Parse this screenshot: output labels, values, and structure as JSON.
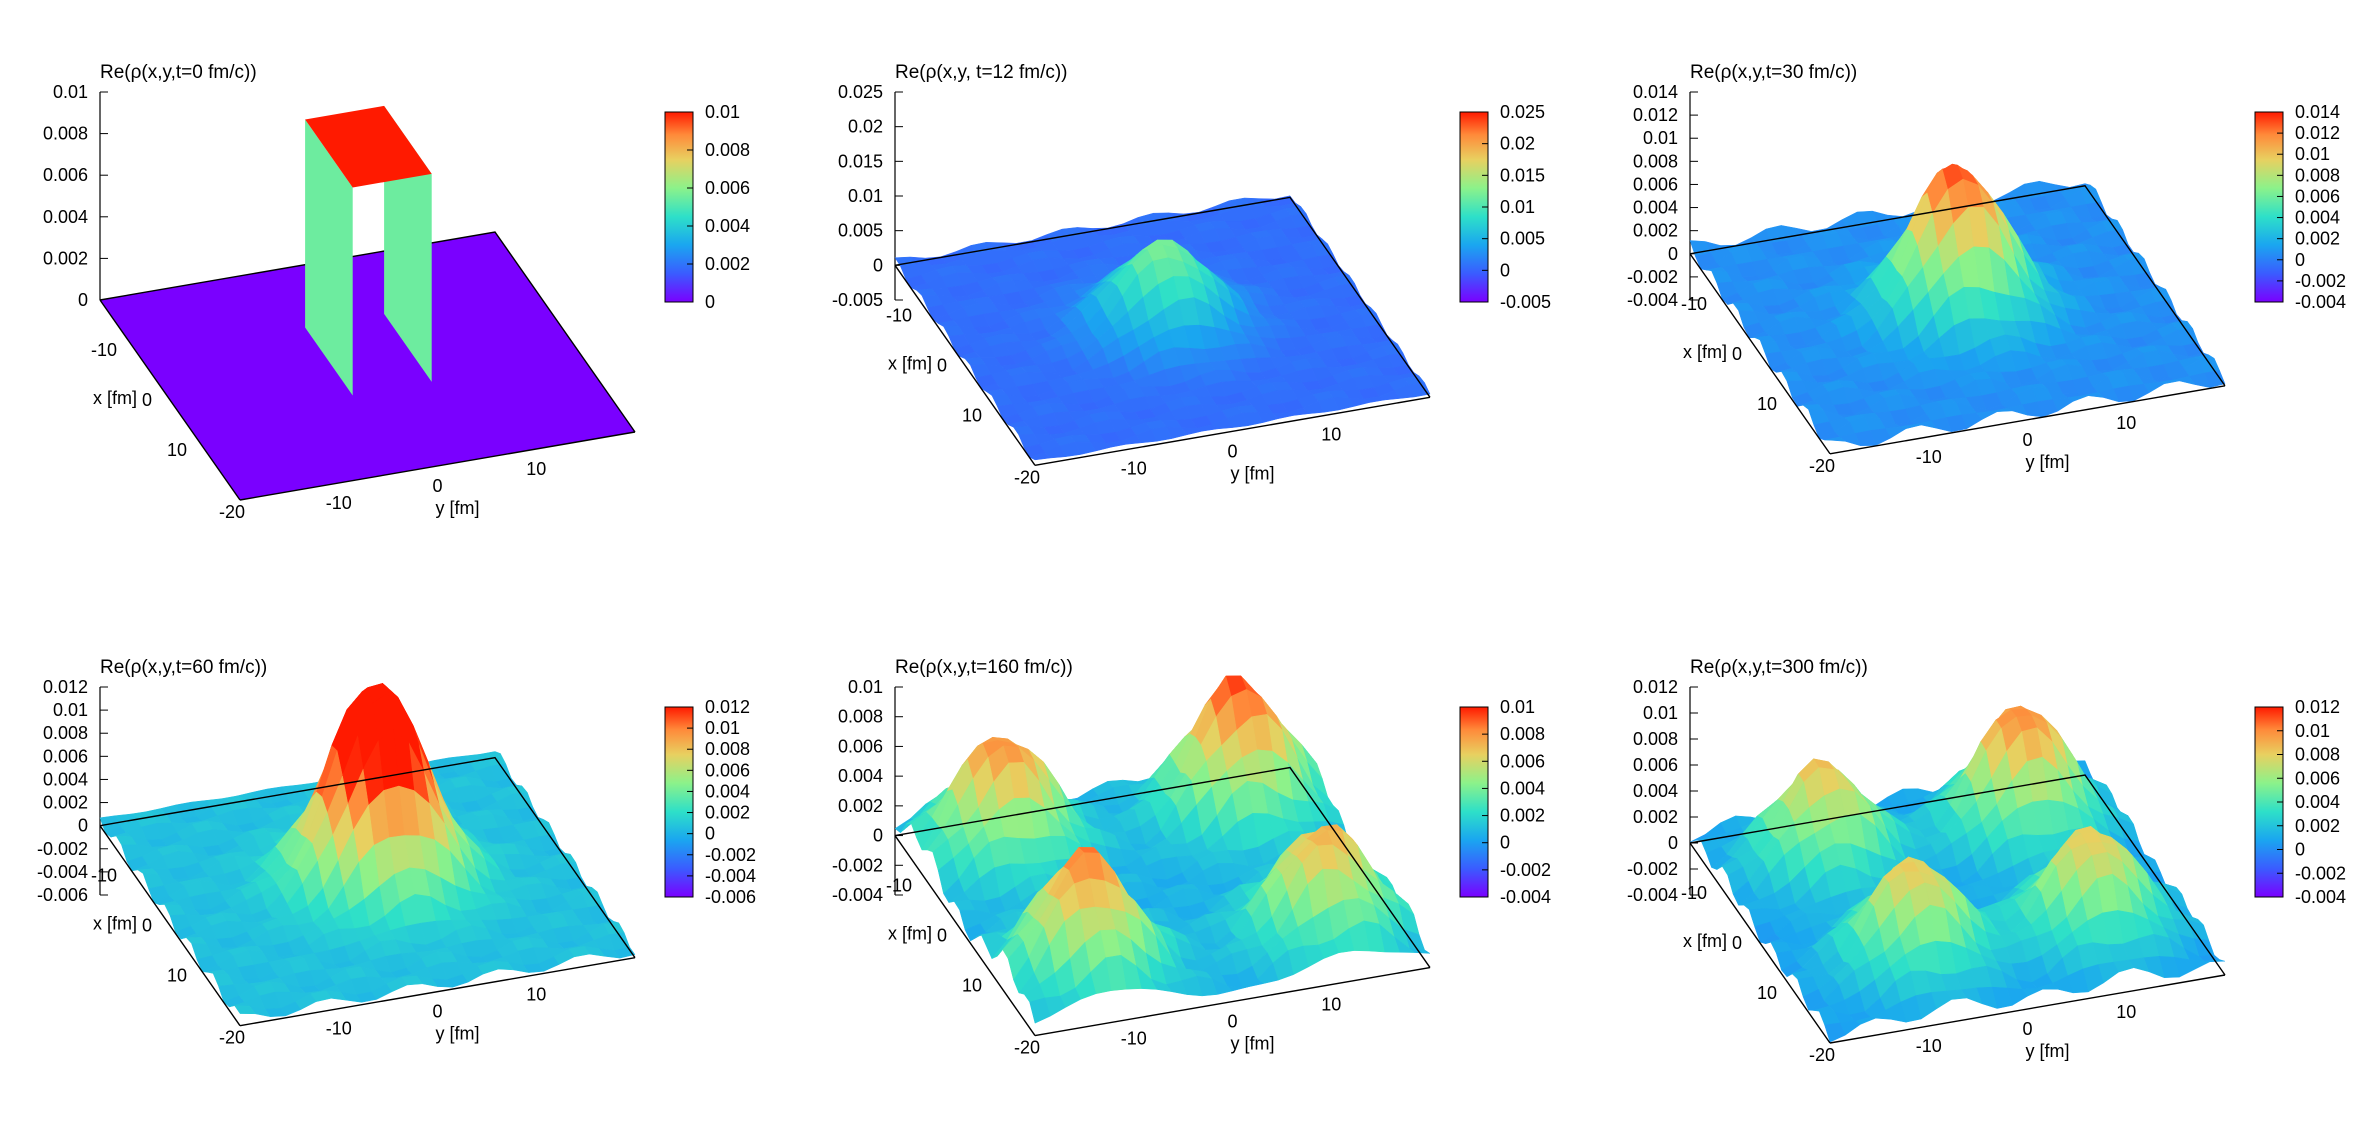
{
  "chart_data": [
    {
      "type": "surface3d",
      "title": "Re(ρ(x,y,t=0 fm/c))",
      "xlabel": "x [fm]",
      "ylabel": "y [fm]",
      "x_ticks": [
        "-10",
        "0",
        "10",
        "-20"
      ],
      "y_ticks": [
        "-10",
        "0",
        "10"
      ],
      "z_ticks": [
        "0.01",
        "0.008",
        "0.006",
        "0.004",
        "0.002",
        "0"
      ],
      "zlim": [
        0,
        0.01
      ],
      "colorbar_ticks": [
        "0.01",
        "0.008",
        "0.006",
        "0.004",
        "0.002",
        "0"
      ],
      "cblim": [
        0,
        0.01
      ],
      "shape": "box",
      "plateau_value": 0.01,
      "baseline_value": 0
    },
    {
      "type": "surface3d",
      "title": "Re(ρ(x,y, t=12 fm/c))",
      "xlabel": "x [fm]",
      "ylabel": "y [fm]",
      "x_ticks": [
        "-10",
        "0",
        "10",
        "-20"
      ],
      "y_ticks": [
        "-10",
        "0",
        "10"
      ],
      "z_ticks": [
        "0.025",
        "0.02",
        "0.015",
        "0.01",
        "0.005",
        "0",
        "-0.005"
      ],
      "zlim": [
        -0.005,
        0.025
      ],
      "colorbar_ticks": [
        "0.025",
        "0.02",
        "0.015",
        "0.01",
        "0.005",
        "0",
        "-0.005"
      ],
      "cblim": [
        -0.005,
        0.025
      ],
      "shape": "peaks",
      "peaks": [
        {
          "x": 0,
          "y": 0,
          "z": 0.012
        }
      ]
    },
    {
      "type": "surface3d",
      "title": "Re(ρ(x,y,t=30 fm/c))",
      "xlabel": "x [fm]",
      "ylabel": "y [fm]",
      "x_ticks": [
        "-10",
        "0",
        "10",
        "-20"
      ],
      "y_ticks": [
        "-10",
        "0",
        "10"
      ],
      "z_ticks": [
        "0.014",
        "0.012",
        "0.01",
        "0.008",
        "0.006",
        "0.004",
        "0.002",
        "0",
        "-0.002",
        "-0.004"
      ],
      "zlim": [
        -0.004,
        0.014
      ],
      "colorbar_ticks": [
        "0.014",
        "0.012",
        "0.01",
        "0.008",
        "0.006",
        "0.004",
        "0.002",
        "0",
        "-0.002",
        "-0.004"
      ],
      "cblim": [
        -0.004,
        0.014
      ],
      "shape": "peaks",
      "peaks": [
        {
          "x": 0,
          "y": 0,
          "z": 0.013
        }
      ]
    },
    {
      "type": "surface3d",
      "title": "Re(ρ(x,y,t=60 fm/c))",
      "xlabel": "x [fm]",
      "ylabel": "y [fm]",
      "x_ticks": [
        "-10",
        "0",
        "10",
        "-20"
      ],
      "y_ticks": [
        "-10",
        "0",
        "10"
      ],
      "z_ticks": [
        "0.012",
        "0.01",
        "0.008",
        "0.006",
        "0.004",
        "0.002",
        "0",
        "-0.002",
        "-0.004",
        "-0.006"
      ],
      "zlim": [
        -0.006,
        0.012
      ],
      "colorbar_ticks": [
        "0.012",
        "0.01",
        "0.008",
        "0.006",
        "0.004",
        "0.002",
        "0",
        "-0.002",
        "-0.004",
        "-0.006"
      ],
      "cblim": [
        -0.006,
        0.012
      ],
      "shape": "peaks",
      "peaks": [
        {
          "x": -1,
          "y": 0,
          "z": 0.009
        },
        {
          "x": 1,
          "y": 2,
          "z": 0.0095
        }
      ]
    },
    {
      "type": "surface3d",
      "title": "Re(ρ(x,y,t=160 fm/c))",
      "xlabel": "x [fm]",
      "ylabel": "y [fm]",
      "x_ticks": [
        "-10",
        "0",
        "10",
        "-20"
      ],
      "y_ticks": [
        "-10",
        "0",
        "10"
      ],
      "z_ticks": [
        "0.01",
        "0.008",
        "0.006",
        "0.004",
        "0.002",
        "0",
        "-0.002",
        "-0.004"
      ],
      "zlim": [
        -0.004,
        0.01
      ],
      "colorbar_ticks": [
        "0.01",
        "0.008",
        "0.006",
        "0.004",
        "0.002",
        "0",
        "-0.002",
        "-0.004"
      ],
      "cblim": [
        -0.004,
        0.01
      ],
      "shape": "peaks",
      "peaks": [
        {
          "x": -12,
          "y": -12,
          "z": 0.008
        },
        {
          "x": -12,
          "y": 12,
          "z": 0.009
        },
        {
          "x": 12,
          "y": -12,
          "z": 0.008
        },
        {
          "x": 12,
          "y": 12,
          "z": 0.007
        }
      ]
    },
    {
      "type": "surface3d",
      "title": "Re(ρ(x,y,t=300 fm/c))",
      "xlabel": "x [fm]",
      "ylabel": "y [fm]",
      "x_ticks": [
        "-10",
        "0",
        "10",
        "-20"
      ],
      "y_ticks": [
        "-10",
        "0",
        "10"
      ],
      "z_ticks": [
        "0.012",
        "0.01",
        "0.008",
        "0.006",
        "0.004",
        "0.002",
        "0",
        "-0.002",
        "-0.004"
      ],
      "zlim": [
        -0.004,
        0.012
      ],
      "colorbar_ticks": [
        "0.012",
        "0.01",
        "0.008",
        "0.006",
        "0.004",
        "0.002",
        "0",
        "-0.002",
        "-0.004"
      ],
      "cblim": [
        -0.004,
        0.012
      ],
      "shape": "peaks",
      "peaks": [
        {
          "x": -10,
          "y": -10,
          "z": 0.008
        },
        {
          "x": -10,
          "y": 10,
          "z": 0.01
        },
        {
          "x": 10,
          "y": -8,
          "z": 0.008
        },
        {
          "x": 10,
          "y": 10,
          "z": 0.008
        }
      ]
    }
  ]
}
